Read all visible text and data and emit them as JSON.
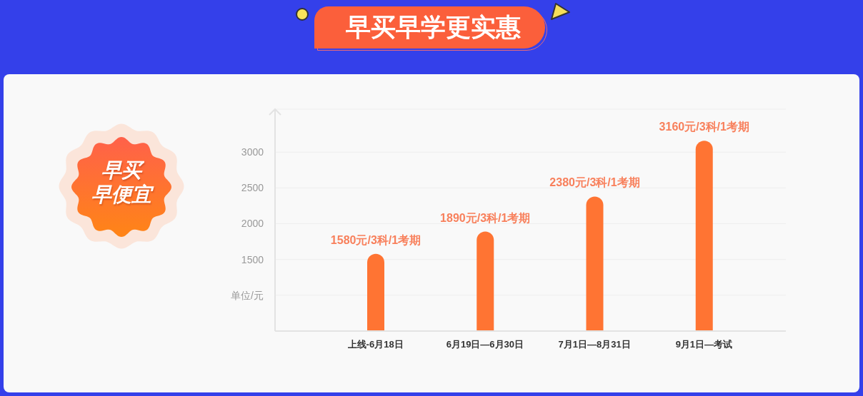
{
  "chart_data": {
    "type": "bar",
    "title": "早买早学更实惠",
    "categories": [
      "上线-6月18日",
      "6月19日—6月30日",
      "7月1日—8月31日",
      "9月1日—考试"
    ],
    "values": [
      1580,
      1890,
      2380,
      3160
    ],
    "value_labels": [
      "1580元/3科/1考期",
      "1890元/3科/1考期",
      "2380元/3科/1考期",
      "3160元/3科/1考期"
    ],
    "color": "#ff7433",
    "ylim": [
      500,
      3600
    ],
    "yticks": [
      {
        "value": 1000,
        "label": "单位/元"
      },
      1500,
      2000,
      2500,
      3000
    ],
    "grid": "y",
    "annotations": [
      "早买",
      "早便宜"
    ]
  }
}
